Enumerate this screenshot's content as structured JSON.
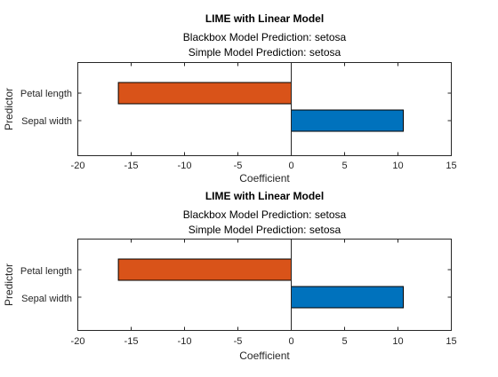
{
  "chart_data": [
    {
      "type": "bar",
      "orientation": "horizontal",
      "title": "LIME with Linear Model",
      "subtitle_lines": [
        "Blackbox Model Prediction: setosa",
        "Simple Model Prediction: setosa"
      ],
      "xlabel": "Coefficient",
      "ylabel": "Predictor",
      "xlim": [
        -20,
        15
      ],
      "xticks": [
        -20,
        -15,
        -10,
        -5,
        0,
        5,
        10,
        15
      ],
      "categories": [
        "Petal length",
        "Sepal width"
      ],
      "values": [
        -16.2,
        10.5
      ],
      "colors": [
        "#d95319",
        "#0072bd"
      ],
      "grid": false,
      "legend": "none"
    },
    {
      "type": "bar",
      "orientation": "horizontal",
      "title": "LIME with Linear Model",
      "subtitle_lines": [
        "Blackbox Model Prediction: setosa",
        "Simple Model Prediction: setosa"
      ],
      "xlabel": "Coefficient",
      "ylabel": "Predictor",
      "xlim": [
        -20,
        15
      ],
      "xticks": [
        -20,
        -15,
        -10,
        -5,
        0,
        5,
        10,
        15
      ],
      "categories": [
        "Petal length",
        "Sepal width"
      ],
      "values": [
        -16.2,
        10.5
      ],
      "colors": [
        "#d95319",
        "#0072bd"
      ],
      "grid": false,
      "legend": "none"
    }
  ]
}
